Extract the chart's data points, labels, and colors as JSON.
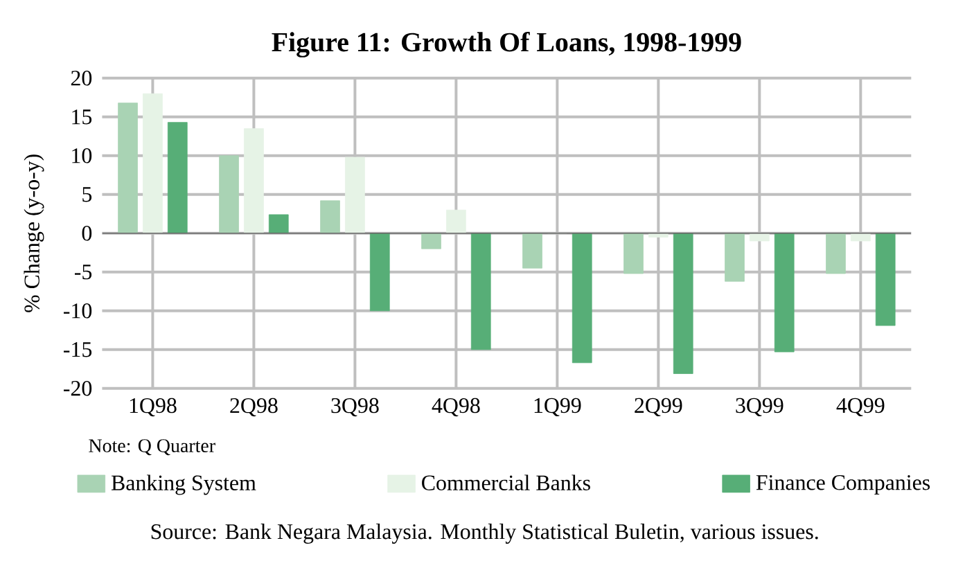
{
  "chart_data": {
    "type": "bar",
    "title": "Figure 11: Growth Of Loans, 1998-1999",
    "ylabel": "% Change (y-o-y)",
    "categories": [
      "1Q98",
      "2Q98",
      "3Q98",
      "4Q98",
      "1Q99",
      "2Q99",
      "3Q99",
      "4Q99"
    ],
    "series": [
      {
        "name": "Banking System",
        "color": "#a9d3b4",
        "values": [
          16.8,
          10,
          4.2,
          -2,
          -4.5,
          -5.2,
          -6.2,
          -5.2
        ]
      },
      {
        "name": "Commercial Banks",
        "color": "#e6f3e6",
        "values": [
          18,
          13.5,
          9.8,
          3,
          0,
          -0.5,
          -1,
          -1
        ]
      },
      {
        "name": "Finance Companies",
        "color": "#57ae77",
        "values": [
          14.3,
          2.4,
          -10,
          -15,
          -16.7,
          -18.1,
          -15.3,
          -11.9
        ]
      }
    ],
    "ylim": [
      -20,
      20
    ],
    "yticks": [
      -20,
      -15,
      -10,
      -5,
      0,
      5,
      10,
      15,
      20
    ],
    "grid": true,
    "legend": "bottom",
    "annotations": [
      "Note: Q Quarter",
      "Source: Bank Negara Malaysia. Monthly Statistical Buletin, various issues."
    ]
  }
}
